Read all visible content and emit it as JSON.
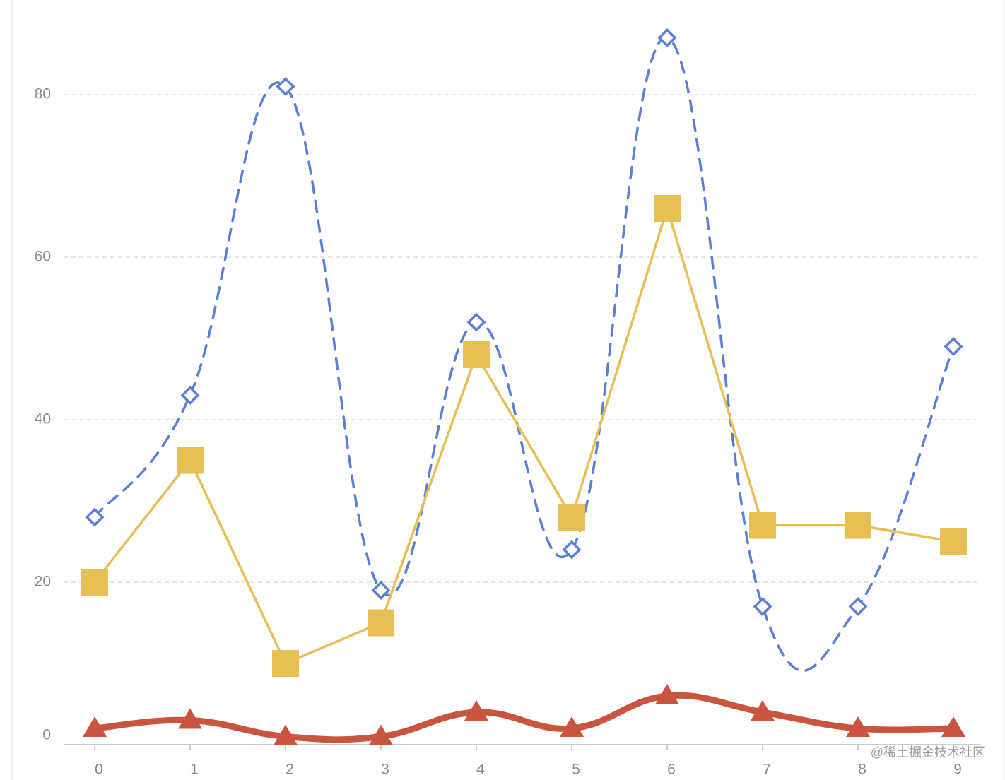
{
  "chart_data": {
    "type": "line",
    "categories": [
      "0",
      "1",
      "2",
      "3",
      "4",
      "5",
      "6",
      "7",
      "8",
      "9"
    ],
    "series": [
      {
        "color": "#5b7fd6",
        "values": [
          28,
          43,
          81,
          19,
          52,
          24,
          87,
          17,
          17,
          49
        ],
        "smooth": true,
        "dashed": true,
        "marker": "diamond"
      },
      {
        "color": "#e8bf55",
        "values": [
          20,
          35,
          10,
          15,
          48,
          28,
          66,
          27,
          27,
          25
        ],
        "smooth": false,
        "dashed": false,
        "marker": "square"
      },
      {
        "color": "#c9553e",
        "values": [
          2,
          3,
          1,
          1,
          4,
          2,
          6,
          4,
          2,
          2
        ],
        "smooth": true,
        "dashed": false,
        "marker": "triangle"
      }
    ],
    "ylim": [
      0,
      90
    ],
    "yticks": [
      0,
      20,
      40,
      60,
      80
    ],
    "grid": true,
    "watermark": "@稀土掘金技术社区"
  }
}
